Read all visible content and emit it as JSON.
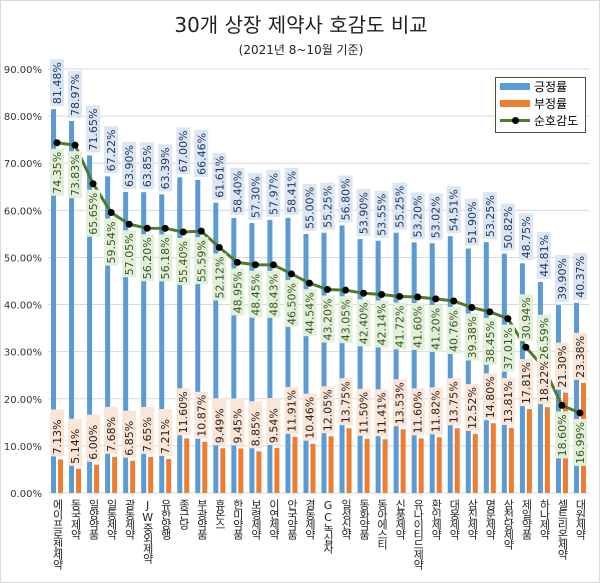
{
  "chart_data": {
    "type": "bar",
    "title": "30개 상장 제약사 호감도 비교",
    "subtitle": "(2021년 8~10월 기준)",
    "ylim": [
      0,
      90
    ],
    "yticks": [
      "0.00%",
      "10.00%",
      "20.00%",
      "30.00%",
      "40.00%",
      "50.00%",
      "60.00%",
      "70.00%",
      "80.00%",
      "90.00%"
    ],
    "grid": true,
    "legend_position": "top-right",
    "categories": [
      "에이프로젠제약",
      "동국제약",
      "일양약품",
      "일동제약",
      "광동제약",
      "JW중외제약",
      "유한양행",
      "종근당",
      "부광약품",
      "휴온스",
      "한미약품",
      "보령제약",
      "이연제약",
      "안국약품",
      "경동제약",
      "GC녹십자",
      "일성신약",
      "동화약품",
      "동아에스티",
      "신풍제약",
      "유나이티드제약",
      "환인제약",
      "대웅제약",
      "삼진제약",
      "명문제약",
      "삼천당제약",
      "제일약품",
      "하나제약",
      "셀트리온제약",
      "대원제약"
    ],
    "series": [
      {
        "name": "긍정률",
        "type": "bar",
        "color": "#5b9bd5",
        "values": [
          81.48,
          78.97,
          71.65,
          67.22,
          63.9,
          63.85,
          63.39,
          67.0,
          66.46,
          61.61,
          58.4,
          57.3,
          57.97,
          58.41,
          55.0,
          55.25,
          56.8,
          53.9,
          53.55,
          55.25,
          53.2,
          53.02,
          54.51,
          51.9,
          53.25,
          50.82,
          48.75,
          44.81,
          39.9,
          40.37
        ]
      },
      {
        "name": "부정률",
        "type": "bar",
        "color": "#ed7d31",
        "values": [
          7.13,
          5.14,
          6.0,
          7.68,
          6.85,
          7.65,
          7.21,
          11.6,
          10.87,
          9.49,
          9.45,
          8.85,
          9.54,
          11.91,
          10.46,
          12.05,
          13.75,
          11.5,
          11.41,
          13.53,
          11.6,
          11.82,
          13.75,
          12.52,
          14.8,
          13.81,
          17.81,
          18.22,
          21.3,
          23.38
        ]
      },
      {
        "name": "순호감도",
        "type": "line",
        "color": "#4f7a28",
        "values": [
          74.35,
          73.83,
          65.65,
          59.54,
          57.05,
          56.2,
          56.18,
          55.4,
          55.59,
          52.12,
          48.95,
          48.45,
          48.43,
          46.5,
          44.54,
          43.2,
          43.05,
          42.4,
          42.14,
          41.72,
          41.6,
          41.2,
          40.76,
          39.38,
          38.45,
          37.01,
          30.94,
          26.59,
          18.6,
          16.99
        ]
      }
    ]
  }
}
